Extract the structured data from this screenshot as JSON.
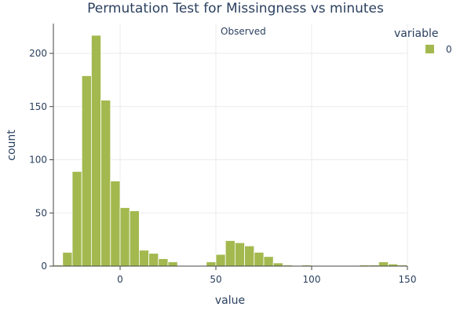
{
  "chart_data": {
    "type": "bar",
    "subtype": "histogram",
    "title": "Permutation Test for Missingness vs minutes",
    "xlabel": "value",
    "ylabel": "count",
    "xlim": [
      -35,
      150
    ],
    "ylim": [
      0,
      230
    ],
    "xticks": [
      0,
      50,
      100,
      150
    ],
    "yticks": [
      0,
      50,
      100,
      150,
      200
    ],
    "grid": true,
    "bin_width": 5,
    "bin_start": -35,
    "legend": {
      "title": "variable",
      "position": "right",
      "entries": [
        {
          "name": "0",
          "color": "#a3b94f"
        }
      ]
    },
    "annotations": [
      {
        "text": "Observed",
        "x": 51,
        "position": "top"
      }
    ],
    "series": [
      {
        "name": "0",
        "color": "#a3b94f",
        "bins": [
          {
            "x0": -35,
            "x1": -30,
            "count": 1
          },
          {
            "x0": -30,
            "x1": -25,
            "count": 13
          },
          {
            "x0": -25,
            "x1": -20,
            "count": 89
          },
          {
            "x0": -20,
            "x1": -15,
            "count": 179
          },
          {
            "x0": -15,
            "x1": -10,
            "count": 217
          },
          {
            "x0": -10,
            "x1": -5,
            "count": 156
          },
          {
            "x0": -5,
            "x1": 0,
            "count": 80
          },
          {
            "x0": 0,
            "x1": 5,
            "count": 55
          },
          {
            "x0": 5,
            "x1": 10,
            "count": 52
          },
          {
            "x0": 10,
            "x1": 15,
            "count": 15
          },
          {
            "x0": 15,
            "x1": 20,
            "count": 12
          },
          {
            "x0": 20,
            "x1": 25,
            "count": 7
          },
          {
            "x0": 25,
            "x1": 30,
            "count": 4
          },
          {
            "x0": 45,
            "x1": 50,
            "count": 4
          },
          {
            "x0": 50,
            "x1": 55,
            "count": 11
          },
          {
            "x0": 55,
            "x1": 60,
            "count": 24
          },
          {
            "x0": 60,
            "x1": 65,
            "count": 22
          },
          {
            "x0": 65,
            "x1": 70,
            "count": 19
          },
          {
            "x0": 70,
            "x1": 75,
            "count": 13
          },
          {
            "x0": 75,
            "x1": 80,
            "count": 9
          },
          {
            "x0": 80,
            "x1": 85,
            "count": 3
          },
          {
            "x0": 85,
            "x1": 90,
            "count": 1
          },
          {
            "x0": 95,
            "x1": 100,
            "count": 1
          },
          {
            "x0": 125,
            "x1": 130,
            "count": 1
          },
          {
            "x0": 130,
            "x1": 135,
            "count": 1
          },
          {
            "x0": 135,
            "x1": 140,
            "count": 4
          },
          {
            "x0": 140,
            "x1": 145,
            "count": 2
          },
          {
            "x0": 145,
            "x1": 150,
            "count": 1
          }
        ]
      }
    ]
  }
}
